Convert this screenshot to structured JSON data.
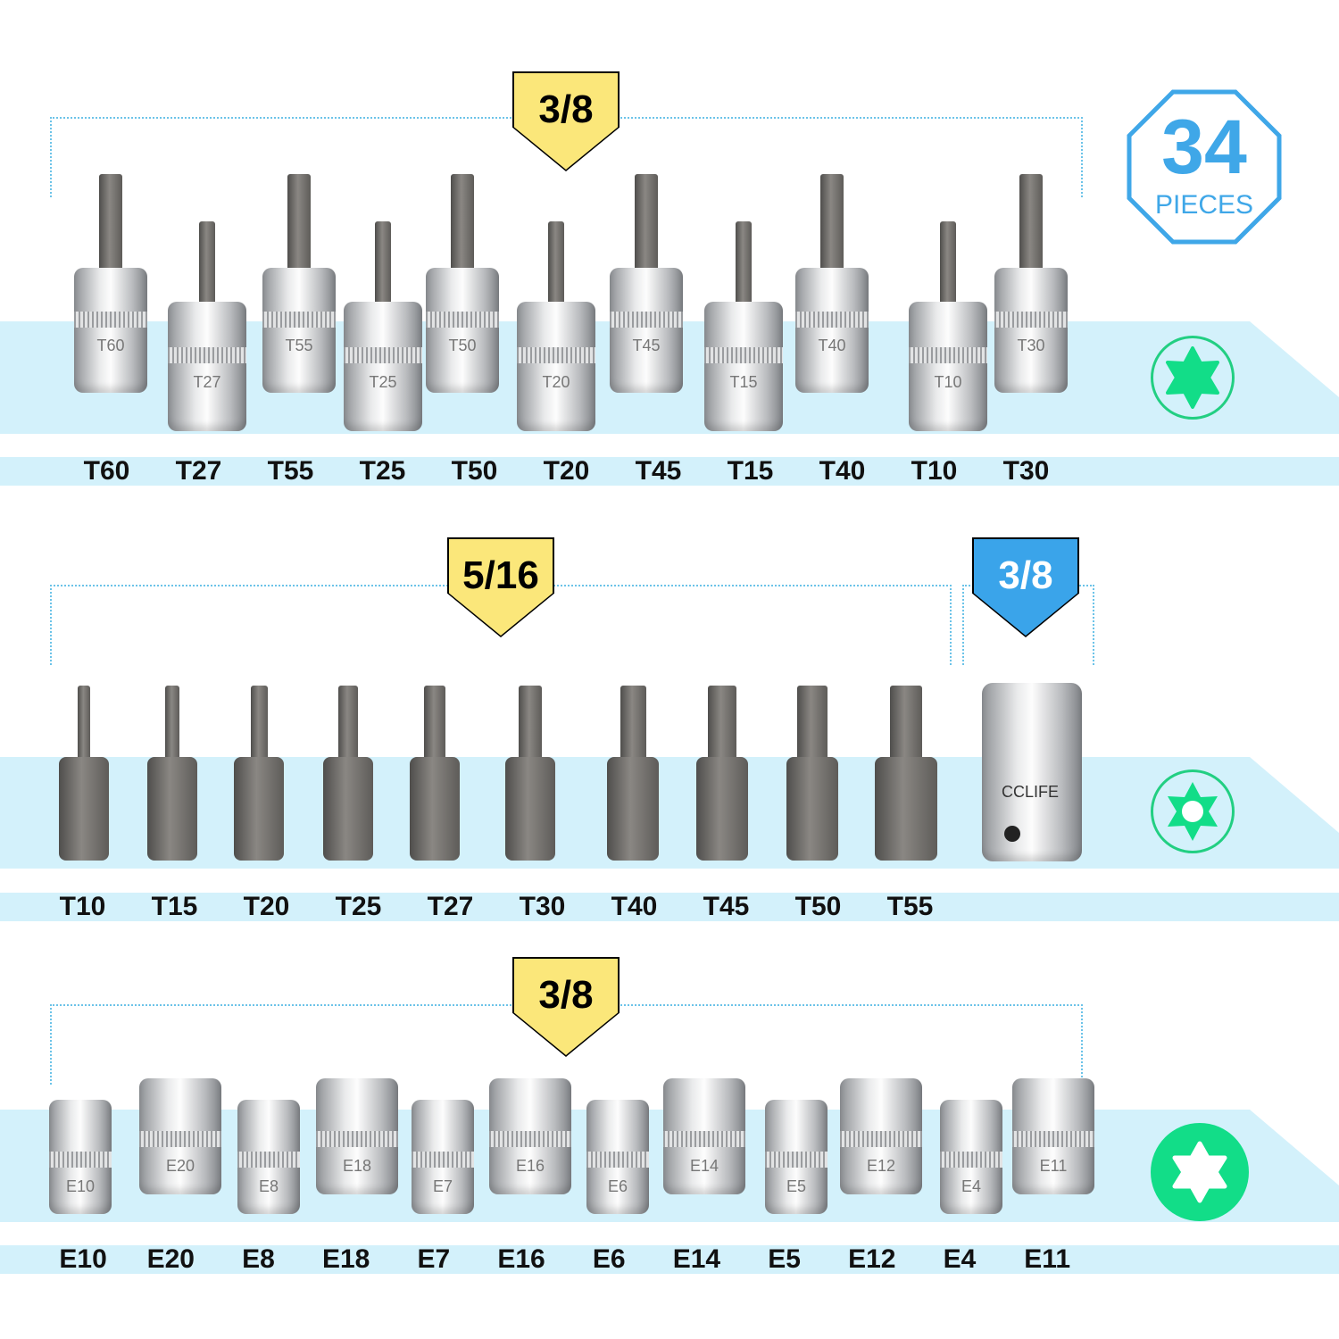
{
  "badge": {
    "count": "34",
    "unit": "PIECES",
    "color": "#3fa7e8"
  },
  "colors": {
    "band": "#d3f1fb",
    "tag_yellow": "#fbe77a",
    "tag_blue": "#3aa4ea",
    "icon_green": "#12dd88"
  },
  "row1": {
    "tag": "3/8",
    "icon": "torx-star-solid-icon",
    "labels": [
      "T60",
      "T27",
      "T55",
      "T25",
      "T50",
      "T20",
      "T45",
      "T15",
      "T40",
      "T10",
      "T30"
    ]
  },
  "row2": {
    "tag": "5/16",
    "adapter_tag": "3/8",
    "adapter_brand": "CCLIFE",
    "icon": "torx-star-outline-icon",
    "labels": [
      "T10",
      "T15",
      "T20",
      "T25",
      "T27",
      "T30",
      "T40",
      "T45",
      "T50",
      "T55"
    ]
  },
  "row3": {
    "tag": "3/8",
    "icon": "e-torx-socket-icon",
    "labels": [
      "E10",
      "E20",
      "E8",
      "E18",
      "E7",
      "E16",
      "E6",
      "E14",
      "E5",
      "E12",
      "E4",
      "E11"
    ]
  }
}
